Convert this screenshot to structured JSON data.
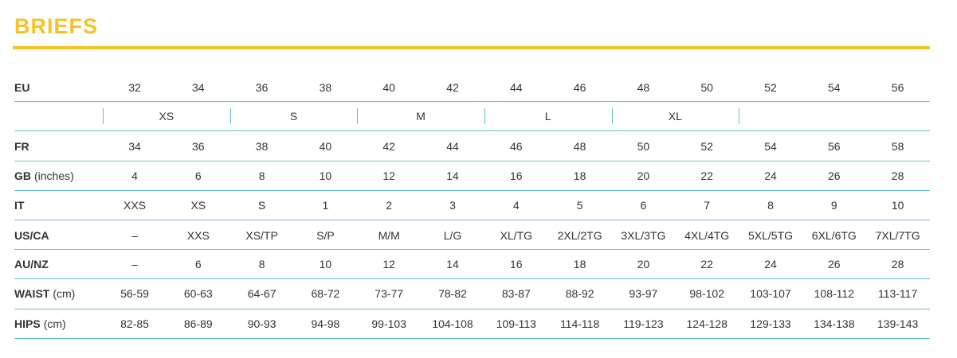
{
  "title": "BRIEFS",
  "table": {
    "rows": [
      {
        "label": "EU",
        "values": [
          "32",
          "34",
          "36",
          "38",
          "40",
          "42",
          "44",
          "46",
          "48",
          "50",
          "52",
          "54",
          "56"
        ]
      },
      {
        "groups": [
          "XS",
          "S",
          "M",
          "L",
          "XL"
        ]
      },
      {
        "label": "FR",
        "values": [
          "34",
          "36",
          "38",
          "40",
          "42",
          "44",
          "46",
          "48",
          "50",
          "52",
          "54",
          "56",
          "58"
        ]
      },
      {
        "label": "GB",
        "unit": "(inches)",
        "values": [
          "4",
          "6",
          "8",
          "10",
          "12",
          "14",
          "16",
          "18",
          "20",
          "22",
          "24",
          "26",
          "28"
        ]
      },
      {
        "label": "IT",
        "values": [
          "XXS",
          "XS",
          "S",
          "1",
          "2",
          "3",
          "4",
          "5",
          "6",
          "7",
          "8",
          "9",
          "10"
        ]
      },
      {
        "label": "US/CA",
        "values": [
          "–",
          "XXS",
          "XS/TP",
          "S/P",
          "M/M",
          "L/G",
          "XL/TG",
          "2XL/2TG",
          "3XL/3TG",
          "4XL/4TG",
          "5XL/5TG",
          "6XL/6TG",
          "7XL/7TG"
        ]
      },
      {
        "label": "AU/NZ",
        "values": [
          "–",
          "6",
          "8",
          "10",
          "12",
          "14",
          "16",
          "18",
          "20",
          "22",
          "24",
          "26",
          "28"
        ]
      },
      {
        "label": "WAIST",
        "unit": "(cm)",
        "values": [
          "56-59",
          "60-63",
          "64-67",
          "68-72",
          "73-77",
          "78-82",
          "83-87",
          "88-92",
          "93-97",
          "98-102",
          "103-107",
          "108-112",
          "113-117"
        ]
      },
      {
        "label": "HIPS",
        "unit": "(cm)",
        "values": [
          "82-85",
          "86-89",
          "90-93",
          "94-98",
          "99-103",
          "104-108",
          "109-113",
          "114-118",
          "119-123",
          "124-128",
          "129-133",
          "134-138",
          "139-143"
        ]
      }
    ]
  }
}
